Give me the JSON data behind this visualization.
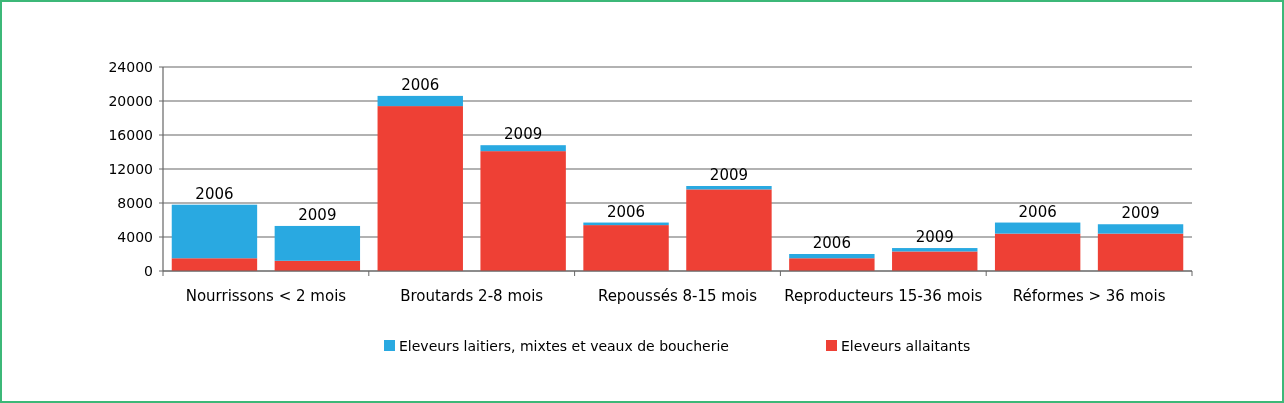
{
  "chart_data": {
    "type": "bar",
    "stacked": true,
    "categories": [
      "2006",
      "2009",
      "2006",
      "2009",
      "2006",
      "2009",
      "2006",
      "2009",
      "2006",
      "2009"
    ],
    "series": [
      {
        "name": "Eleveurs allaitants",
        "color": "#ee4035",
        "values": [
          1500,
          1200,
          19400,
          14100,
          5400,
          9600,
          1500,
          2300,
          4400,
          4400
        ]
      },
      {
        "name": "Eleveurs laitiers, mixtes et veaux de boucherie",
        "color": "#29a9e1",
        "values": [
          6300,
          4100,
          1200,
          700,
          300,
          400,
          500,
          400,
          1300,
          1100
        ]
      }
    ],
    "annotations": [
      "Nourrissons < 2 mois",
      "Broutards 2-8 mois",
      "Repoussés 8-15 mois",
      "Reproducteurs 15-36 mois",
      "Réformes > 36 mois"
    ],
    "ylim": [
      0,
      24000
    ],
    "yticks": [
      0,
      4000,
      8000,
      12000,
      16000,
      20000,
      24000
    ],
    "grid": "y",
    "legend": "bottom"
  }
}
